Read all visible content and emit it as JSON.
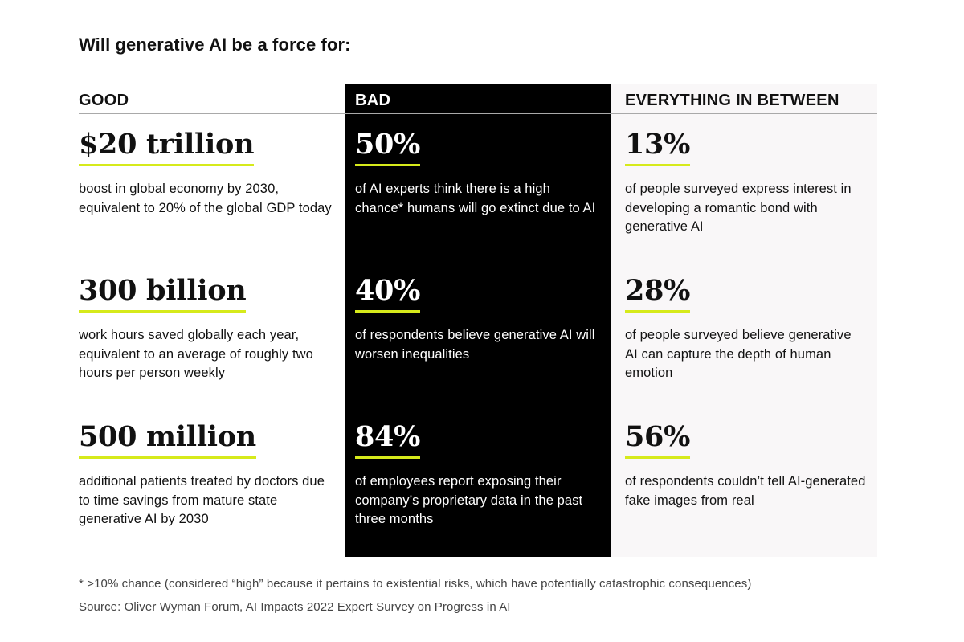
{
  "title": "Will generative AI be a force for:",
  "accent_color": "#d6ea1b",
  "columns": {
    "good": {
      "header": "GOOD",
      "stats": [
        {
          "value": "$20 trillion",
          "description": "boost in global economy by 2030, equivalent to 20% of the global GDP today"
        },
        {
          "value": "300 billion",
          "description": "work hours saved globally each year, equivalent to an average of roughly two hours per person weekly"
        },
        {
          "value": "500 million",
          "description": "additional patients treated by doctors due to time savings from mature state generative AI by 2030"
        }
      ]
    },
    "bad": {
      "header": "BAD",
      "stats": [
        {
          "value": "50%",
          "description": "of AI experts think there is a high chance* humans will go extinct due to AI"
        },
        {
          "value": "40%",
          "description": "of respondents believe generative AI will worsen inequalities"
        },
        {
          "value": "84%",
          "description": "of employees report exposing their company’s proprietary data in the past three months"
        }
      ]
    },
    "between": {
      "header": "EVERYTHING IN BETWEEN",
      "stats": [
        {
          "value": "13%",
          "description": "of people surveyed express interest in developing a romantic bond with generative AI"
        },
        {
          "value": "28%",
          "description": "of people surveyed believe generative AI can capture the depth of human emotion"
        },
        {
          "value": "56%",
          "description": "of respondents couldn’t tell AI-generated fake images from real"
        }
      ]
    }
  },
  "footnote": "* >10% chance (considered “high” because it pertains to existential risks, which have potentially catastrophic consequences)",
  "source": "Source: Oliver Wyman Forum, AI Impacts 2022 Expert Survey on Progress in AI"
}
